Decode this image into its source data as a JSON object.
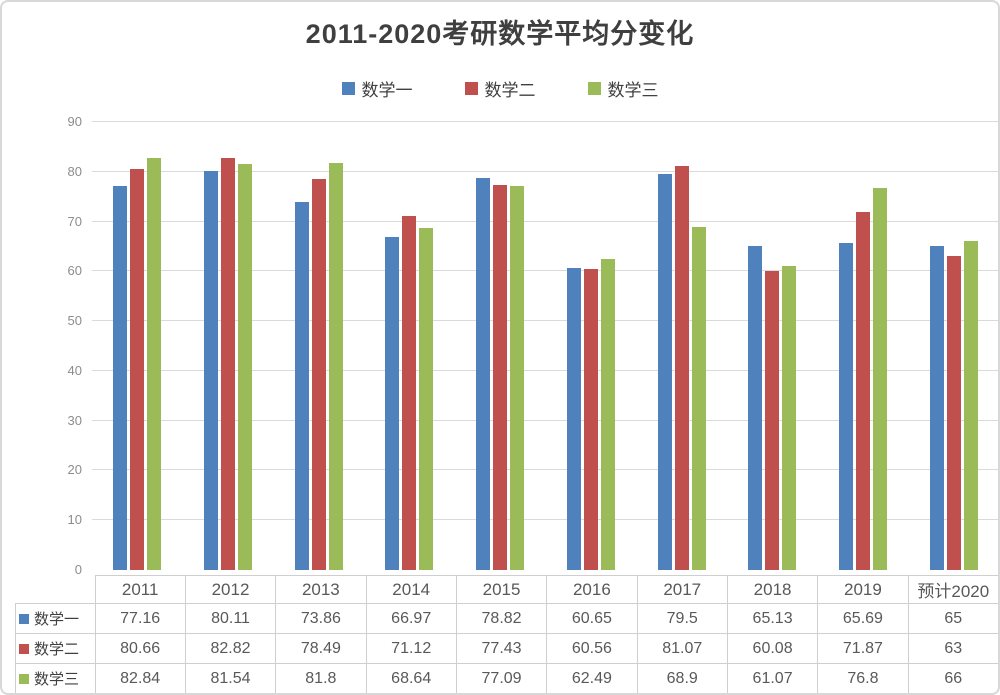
{
  "chart_data": {
    "type": "bar",
    "title": "2011-2020考研数学平均分变化",
    "categories": [
      "2011",
      "2012",
      "2013",
      "2014",
      "2015",
      "2016",
      "2017",
      "2018",
      "2019",
      "预计2020"
    ],
    "series": [
      {
        "name": "数学一",
        "color": "#4F81BD",
        "values": [
          77.16,
          80.11,
          73.86,
          66.97,
          78.82,
          60.65,
          79.5,
          65.13,
          65.69,
          65
        ]
      },
      {
        "name": "数学二",
        "color": "#C0504D",
        "values": [
          80.66,
          82.82,
          78.49,
          71.12,
          77.43,
          60.56,
          81.07,
          60.08,
          71.87,
          63
        ]
      },
      {
        "name": "数学三",
        "color": "#9BBB59",
        "values": [
          82.84,
          81.54,
          81.8,
          68.64,
          77.09,
          62.49,
          68.9,
          61.07,
          76.8,
          66
        ]
      }
    ],
    "ylim": [
      0,
      90
    ],
    "ytick_step": 10,
    "grid": true,
    "legend_position": "top",
    "table_attached": true
  },
  "colors": {
    "gridline": "#dadada",
    "table_border": "#cfcfcf",
    "tick_text": "#8c8c8c",
    "title_text": "#3f3f3f",
    "card_border": "#d8d8d8"
  }
}
